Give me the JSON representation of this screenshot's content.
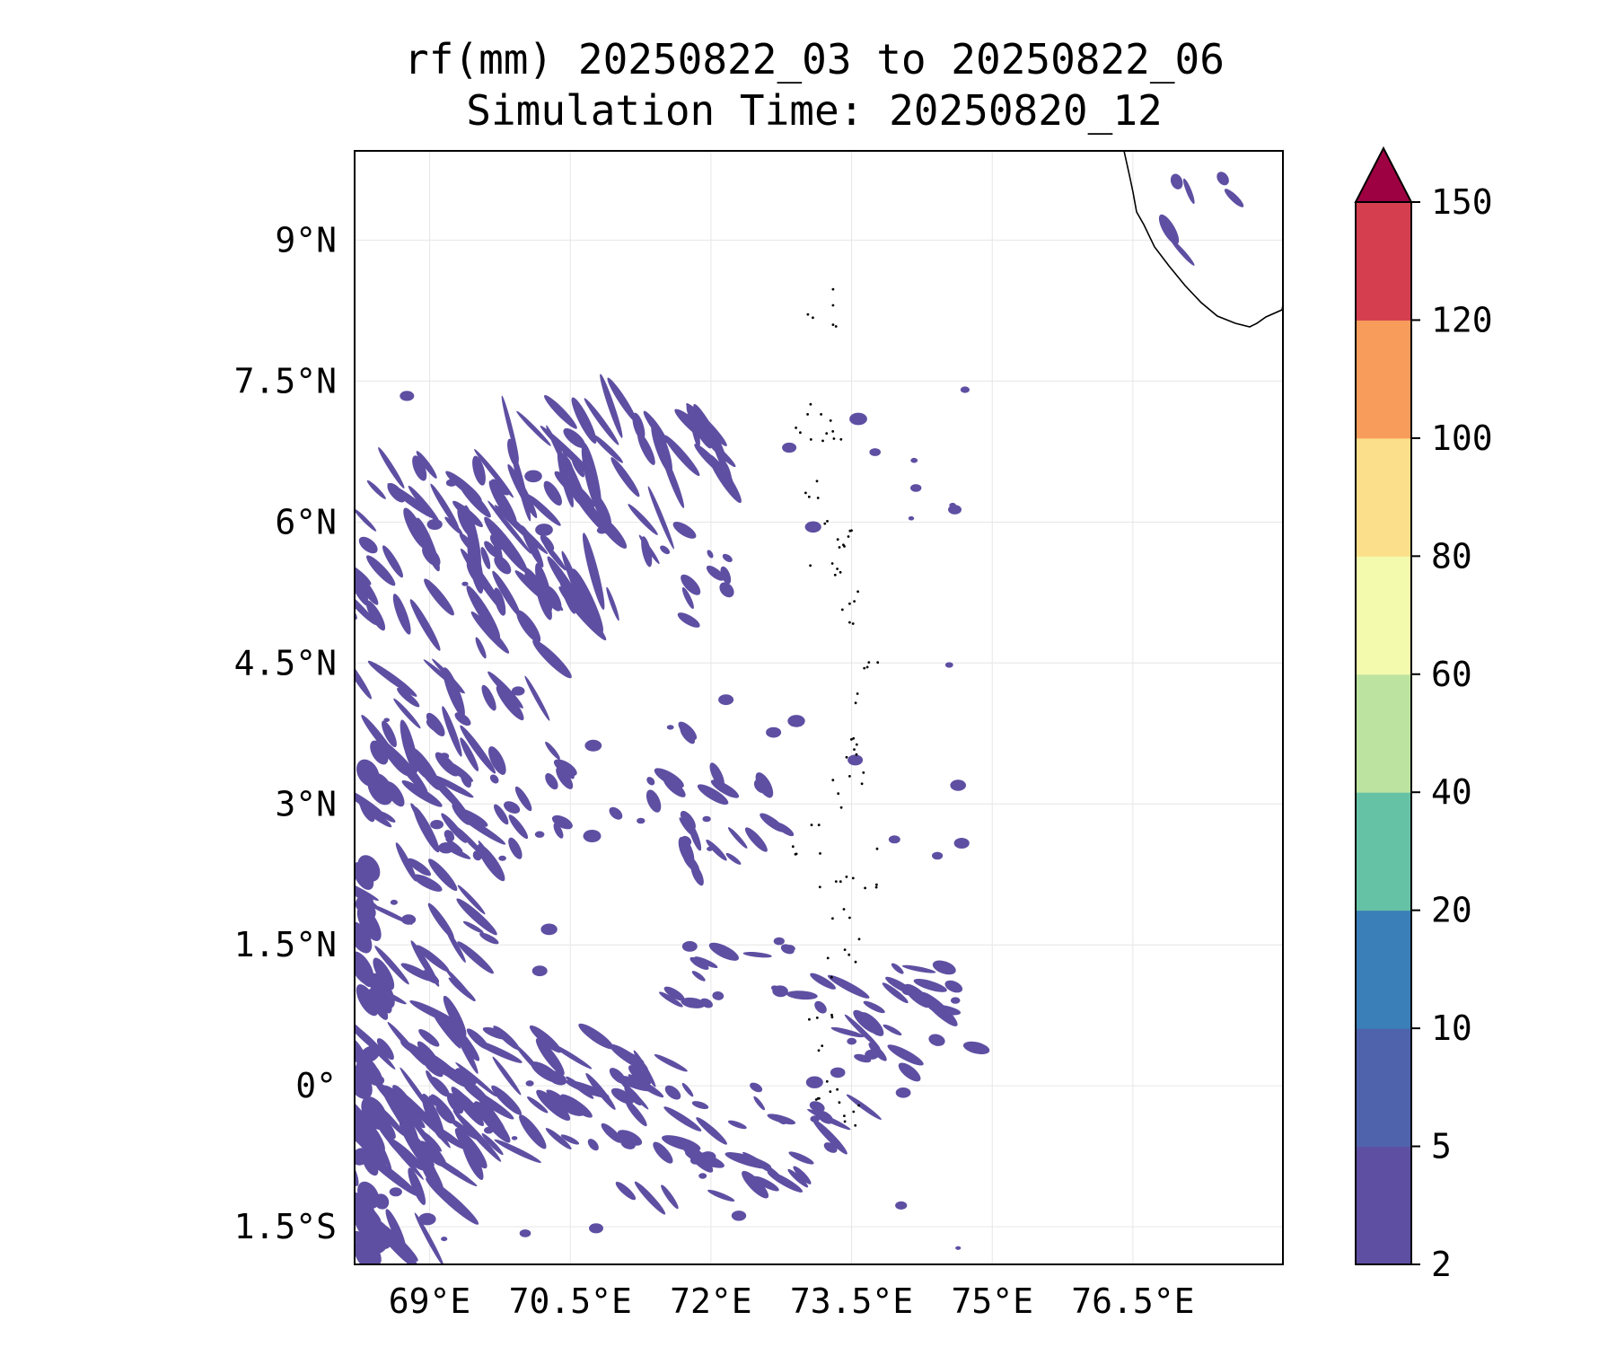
{
  "title": {
    "line1": "rf(mm) 20250822_03 to 20250822_06",
    "line2": "Simulation Time: 20250820_12"
  },
  "map": {
    "lon_range": [
      68.2,
      78.1
    ],
    "lat_range": [
      -1.9,
      9.95
    ],
    "grid": true,
    "lon_ticks": [
      {
        "value": 69,
        "label": "69°E"
      },
      {
        "value": 70.5,
        "label": "70.5°E"
      },
      {
        "value": 72,
        "label": "72°E"
      },
      {
        "value": 73.5,
        "label": "73.5°E"
      },
      {
        "value": 75,
        "label": "75°E"
      },
      {
        "value": 76.5,
        "label": "76.5°E"
      }
    ],
    "lat_ticks": [
      {
        "value": 9,
        "label": "9°N"
      },
      {
        "value": 7.5,
        "label": "7.5°N"
      },
      {
        "value": 6,
        "label": "6°N"
      },
      {
        "value": 4.5,
        "label": "4.5°N"
      },
      {
        "value": 3,
        "label": "3°N"
      },
      {
        "value": 1.5,
        "label": "1.5°N"
      },
      {
        "value": 0,
        "label": "0°"
      },
      {
        "value": -1.5,
        "label": "1.5°S"
      }
    ],
    "rain_color": "#5e4fa2",
    "rain_band": "2–5 mm",
    "coastline_color": "#000000"
  },
  "colorbar": {
    "levels": [
      "2",
      "5",
      "10",
      "20",
      "40",
      "60",
      "80",
      "100",
      "120",
      "150"
    ],
    "colors": [
      "#5e4fa2",
      "#4f63ad",
      "#3a7fb8",
      "#66c2a5",
      "#bde3a0",
      "#f3faad",
      "#fcdf8a",
      "#f89c5b",
      "#d53e4f",
      "#9e0142"
    ],
    "extend": "max"
  }
}
